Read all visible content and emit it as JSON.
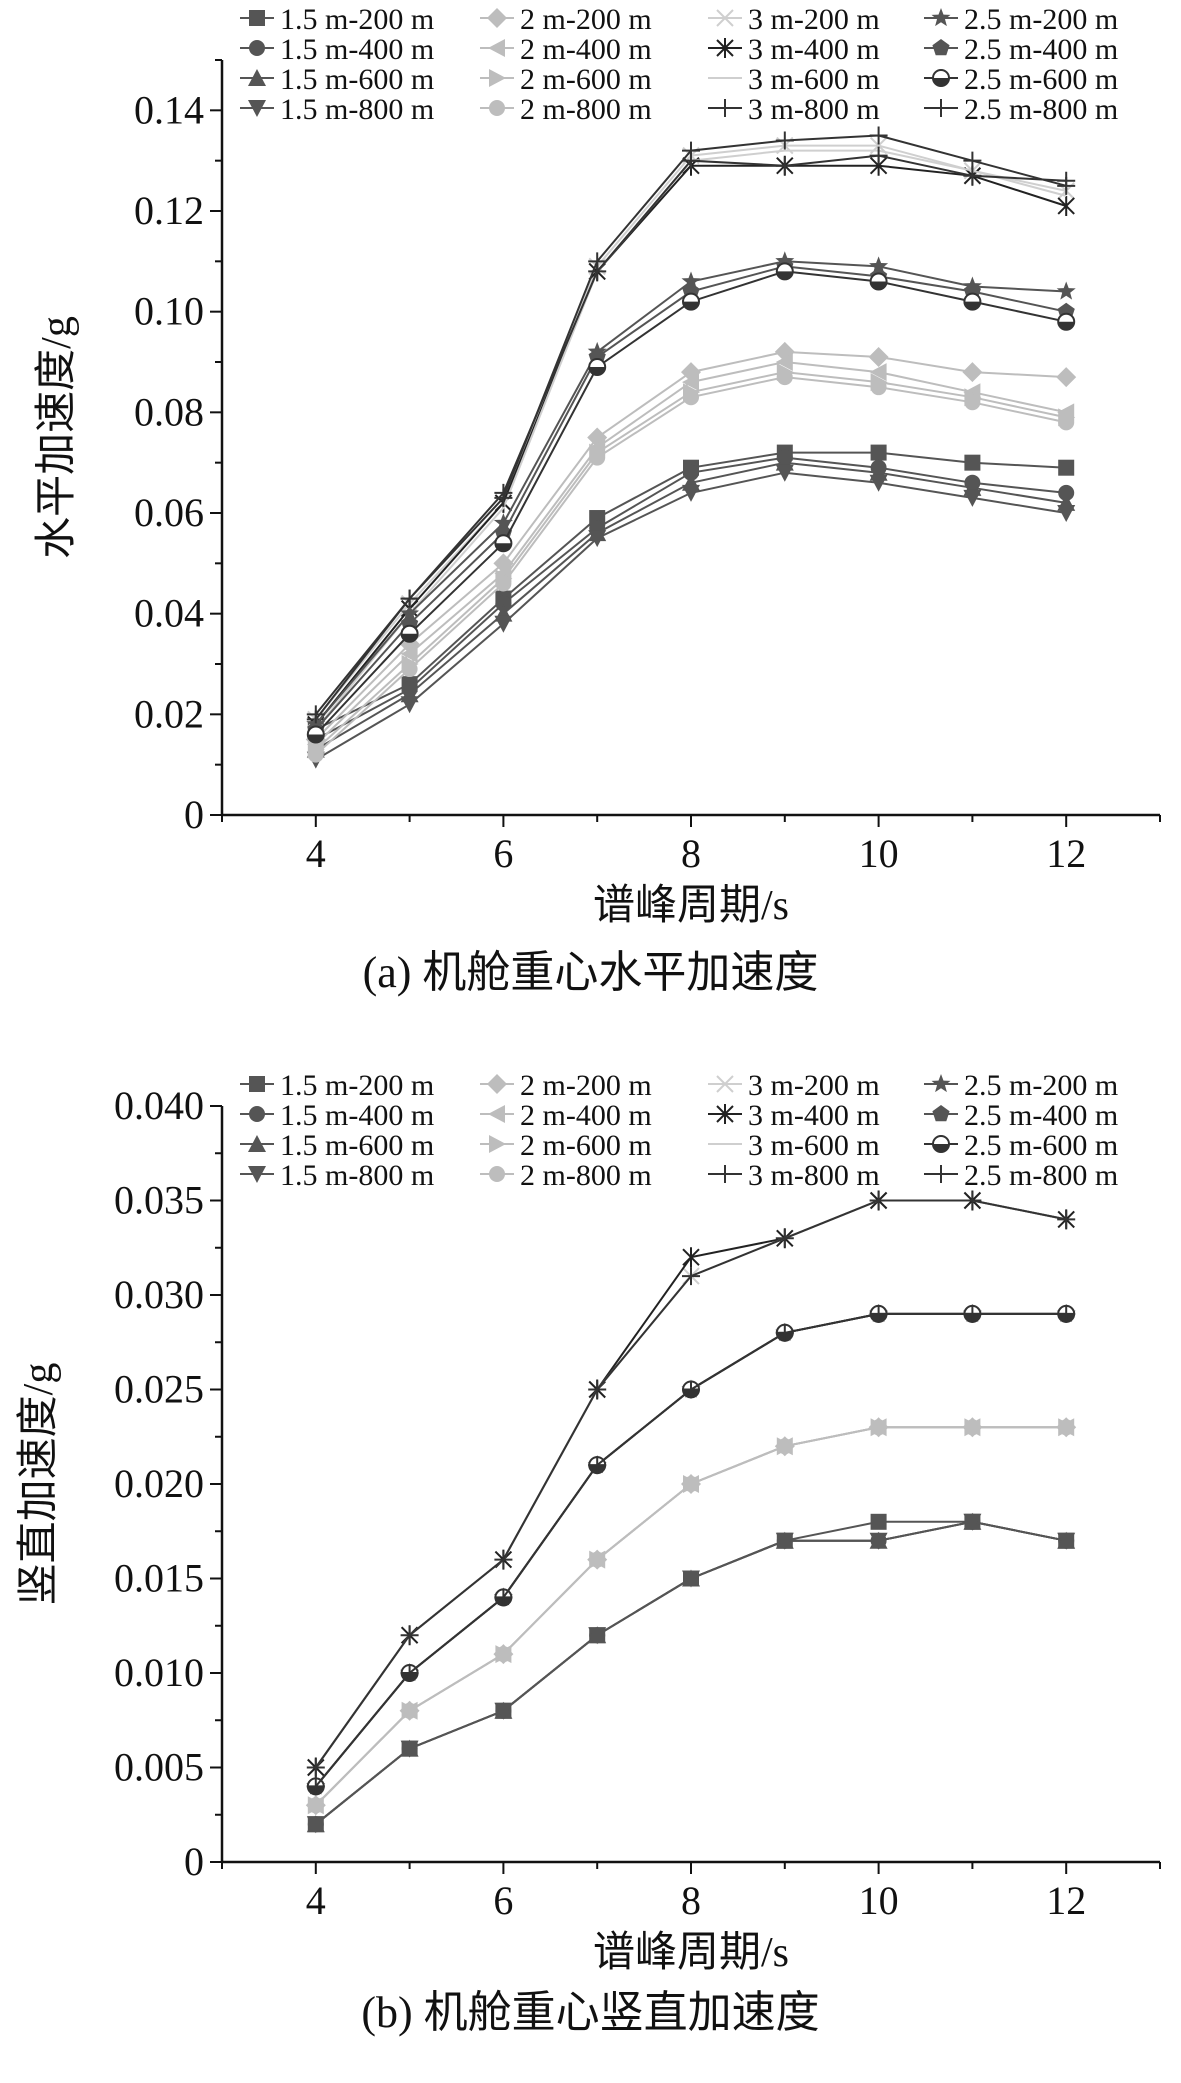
{
  "figure": {
    "caption_a": "(a) 机舱重心水平加速度",
    "caption_b": "(b) 机舱重心竖直加速度"
  },
  "chart_data": [
    {
      "type": "line",
      "title": "",
      "xlabel": "谱峰周期/s",
      "ylabel": "水平加速度/g",
      "xlim": [
        3,
        13
      ],
      "ylim": [
        0,
        0.15
      ],
      "xticks": [
        4,
        6,
        8,
        10,
        12
      ],
      "xtick_labels": [
        "4",
        "6",
        "8",
        "10",
        "12"
      ],
      "yticks": [
        0,
        0.02,
        0.04,
        0.06,
        0.08,
        0.1,
        0.12,
        0.14
      ],
      "ytick_labels": [
        "0",
        "0.02",
        "0.04",
        "0.06",
        "0.08",
        "0.10",
        "0.12",
        "0.14"
      ],
      "grid": false,
      "legend_position": "top",
      "x": [
        4,
        5,
        6,
        7,
        8,
        9,
        10,
        11,
        12
      ],
      "series": [
        {
          "name": "1.5 m-200 m",
          "marker": "square",
          "color": "#555555",
          "values": [
            0.017,
            0.026,
            0.043,
            0.059,
            0.069,
            0.072,
            0.072,
            0.07,
            0.069
          ]
        },
        {
          "name": "1.5 m-400 m",
          "marker": "circle",
          "color": "#555555",
          "values": [
            0.015,
            0.025,
            0.042,
            0.057,
            0.068,
            0.071,
            0.069,
            0.066,
            0.064
          ]
        },
        {
          "name": "1.5 m-600 m",
          "marker": "triangle-up",
          "color": "#555555",
          "values": [
            0.013,
            0.024,
            0.04,
            0.056,
            0.066,
            0.07,
            0.068,
            0.065,
            0.062
          ]
        },
        {
          "name": "1.5 m-800 m",
          "marker": "triangle-down",
          "color": "#555555",
          "values": [
            0.011,
            0.022,
            0.038,
            0.055,
            0.064,
            0.068,
            0.066,
            0.063,
            0.06
          ]
        },
        {
          "name": "2 m-200 m",
          "marker": "diamond",
          "color": "#bdbdbd",
          "values": [
            0.015,
            0.034,
            0.05,
            0.075,
            0.088,
            0.092,
            0.091,
            0.088,
            0.087
          ]
        },
        {
          "name": "2 m-400 m",
          "marker": "triangle-left",
          "color": "#bdbdbd",
          "values": [
            0.014,
            0.032,
            0.048,
            0.073,
            0.086,
            0.09,
            0.088,
            0.084,
            0.08
          ]
        },
        {
          "name": "2 m-600 m",
          "marker": "triangle-right",
          "color": "#bdbdbd",
          "values": [
            0.013,
            0.03,
            0.047,
            0.072,
            0.084,
            0.088,
            0.086,
            0.083,
            0.079
          ]
        },
        {
          "name": "2 m-800 m",
          "marker": "circle",
          "color": "#bdbdbd",
          "values": [
            0.012,
            0.029,
            0.046,
            0.071,
            0.083,
            0.087,
            0.085,
            0.082,
            0.078
          ]
        },
        {
          "name": "3 m-200 m",
          "marker": "x",
          "color": "#cfcfcf",
          "values": [
            0.019,
            0.042,
            0.062,
            0.109,
            0.131,
            0.133,
            0.133,
            0.128,
            0.124
          ]
        },
        {
          "name": "3 m-400 m",
          "marker": "asterisk",
          "color": "#222222",
          "values": [
            0.018,
            0.041,
            0.062,
            0.108,
            0.129,
            0.129,
            0.129,
            0.127,
            0.121
          ]
        },
        {
          "name": "3 m-600 m",
          "marker": "none",
          "color": "#cfcfcf",
          "values": [
            0.017,
            0.04,
            0.061,
            0.108,
            0.13,
            0.132,
            0.132,
            0.128,
            0.123
          ]
        },
        {
          "name": "3 m-800 m",
          "marker": "plus",
          "color": "#333333",
          "values": [
            0.019,
            0.043,
            0.063,
            0.11,
            0.132,
            0.134,
            0.135,
            0.13,
            0.125
          ]
        },
        {
          "name": "2.5 m-200 m",
          "marker": "star",
          "color": "#555555",
          "values": [
            0.018,
            0.04,
            0.058,
            0.092,
            0.106,
            0.11,
            0.109,
            0.105,
            0.104
          ]
        },
        {
          "name": "2.5 m-400 m",
          "marker": "pentagon",
          "color": "#555555",
          "values": [
            0.017,
            0.038,
            0.056,
            0.091,
            0.104,
            0.109,
            0.107,
            0.104,
            0.1
          ]
        },
        {
          "name": "2.5 m-600 m",
          "marker": "half-circle",
          "color": "#333333",
          "values": [
            0.016,
            0.036,
            0.054,
            0.089,
            0.102,
            0.108,
            0.106,
            0.102,
            0.098
          ]
        },
        {
          "name": "2.5 m-800 m",
          "marker": "plus",
          "color": "#333333",
          "values": [
            0.02,
            0.043,
            0.064,
            0.108,
            0.13,
            0.129,
            0.131,
            0.127,
            0.126
          ]
        }
      ]
    },
    {
      "type": "line",
      "title": "",
      "xlabel": "谱峰周期/s",
      "ylabel": "竖直加速度/g",
      "xlim": [
        3,
        13
      ],
      "ylim": [
        0,
        0.04
      ],
      "xticks": [
        4,
        6,
        8,
        10,
        12
      ],
      "xtick_labels": [
        "4",
        "6",
        "8",
        "10",
        "12"
      ],
      "yticks": [
        0,
        0.005,
        0.01,
        0.015,
        0.02,
        0.025,
        0.03,
        0.035,
        0.04
      ],
      "ytick_labels": [
        "0",
        "0.005",
        "0.010",
        "0.015",
        "0.020",
        "0.025",
        "0.030",
        "0.035",
        "0.040"
      ],
      "grid": false,
      "legend_position": "top",
      "x": [
        4,
        5,
        6,
        7,
        8,
        9,
        10,
        11,
        12
      ],
      "series": [
        {
          "name": "1.5 m-200 m",
          "marker": "square",
          "color": "#555555",
          "values": [
            0.002,
            0.006,
            0.008,
            0.012,
            0.015,
            0.017,
            0.018,
            0.018,
            0.017
          ]
        },
        {
          "name": "1.5 m-400 m",
          "marker": "circle",
          "color": "#555555",
          "values": [
            0.002,
            0.006,
            0.008,
            0.012,
            0.015,
            0.017,
            0.017,
            0.018,
            0.017
          ]
        },
        {
          "name": "1.5 m-600 m",
          "marker": "triangle-up",
          "color": "#555555",
          "values": [
            0.002,
            0.006,
            0.008,
            0.012,
            0.015,
            0.017,
            0.017,
            0.018,
            0.017
          ]
        },
        {
          "name": "1.5 m-800 m",
          "marker": "triangle-down",
          "color": "#555555",
          "values": [
            0.002,
            0.006,
            0.008,
            0.012,
            0.015,
            0.017,
            0.017,
            0.018,
            0.017
          ]
        },
        {
          "name": "2 m-200 m",
          "marker": "diamond",
          "color": "#bdbdbd",
          "values": [
            0.003,
            0.008,
            0.011,
            0.016,
            0.02,
            0.022,
            0.023,
            0.023,
            0.023
          ]
        },
        {
          "name": "2 m-400 m",
          "marker": "triangle-left",
          "color": "#bdbdbd",
          "values": [
            0.003,
            0.008,
            0.011,
            0.016,
            0.02,
            0.022,
            0.023,
            0.023,
            0.023
          ]
        },
        {
          "name": "2 m-600 m",
          "marker": "triangle-right",
          "color": "#bdbdbd",
          "values": [
            0.003,
            0.008,
            0.011,
            0.016,
            0.02,
            0.022,
            0.023,
            0.023,
            0.023
          ]
        },
        {
          "name": "2 m-800 m",
          "marker": "circle",
          "color": "#bdbdbd",
          "values": [
            0.003,
            0.008,
            0.011,
            0.016,
            0.02,
            0.022,
            0.023,
            0.023,
            0.023
          ]
        },
        {
          "name": "3 m-200 m",
          "marker": "x",
          "color": "#cfcfcf",
          "values": [
            0.005,
            0.012,
            0.016,
            0.025,
            0.031,
            0.033,
            0.035,
            0.035,
            0.034
          ]
        },
        {
          "name": "3 m-400 m",
          "marker": "asterisk",
          "color": "#222222",
          "values": [
            0.005,
            0.012,
            0.016,
            0.025,
            0.032,
            0.033,
            0.035,
            0.035,
            0.034
          ]
        },
        {
          "name": "3 m-600 m",
          "marker": "none",
          "color": "#cfcfcf",
          "values": [
            0.005,
            0.012,
            0.016,
            0.025,
            0.031,
            0.033,
            0.035,
            0.035,
            0.034
          ]
        },
        {
          "name": "3 m-800 m",
          "marker": "plus",
          "color": "#333333",
          "values": [
            0.005,
            0.012,
            0.016,
            0.025,
            0.031,
            0.033,
            0.035,
            0.035,
            0.034
          ]
        },
        {
          "name": "2.5 m-200 m",
          "marker": "star",
          "color": "#555555",
          "values": [
            0.004,
            0.01,
            0.014,
            0.021,
            0.025,
            0.028,
            0.029,
            0.029,
            0.029
          ]
        },
        {
          "name": "2.5 m-400 m",
          "marker": "pentagon",
          "color": "#555555",
          "values": [
            0.004,
            0.01,
            0.014,
            0.021,
            0.025,
            0.028,
            0.029,
            0.029,
            0.029
          ]
        },
        {
          "name": "2.5 m-600 m",
          "marker": "half-circle",
          "color": "#333333",
          "values": [
            0.004,
            0.01,
            0.014,
            0.021,
            0.025,
            0.028,
            0.029,
            0.029,
            0.029
          ]
        },
        {
          "name": "2.5 m-800 m",
          "marker": "plus",
          "color": "#333333",
          "values": [
            0.004,
            0.01,
            0.014,
            0.021,
            0.025,
            0.028,
            0.029,
            0.029,
            0.029
          ]
        }
      ]
    }
  ]
}
